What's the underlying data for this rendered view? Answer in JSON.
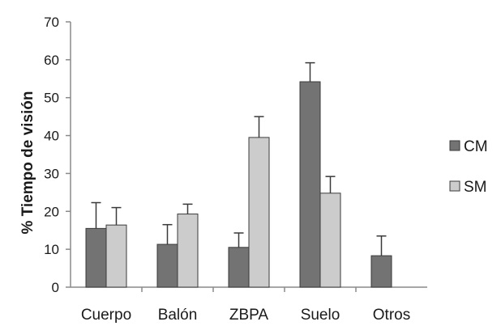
{
  "chart_data": {
    "type": "bar",
    "categories": [
      "Cuerpo",
      "Balón",
      "ZBPA",
      "Suelo",
      "Otros"
    ],
    "series": [
      {
        "name": "CM",
        "values": [
          15.5,
          11.3,
          10.5,
          54.2,
          8.3
        ],
        "errors": [
          6.8,
          5.2,
          3.8,
          5.0,
          5.2
        ],
        "color": "#737373"
      },
      {
        "name": "SM",
        "values": [
          16.4,
          19.3,
          39.5,
          24.8,
          0
        ],
        "errors": [
          4.6,
          2.6,
          5.5,
          4.4,
          0
        ],
        "color": "#cccccc"
      }
    ],
    "title": "",
    "xlabel": "",
    "ylabel": "% Tiempo de visión",
    "ylim": [
      0,
      70
    ],
    "yticks": [
      0,
      10,
      20,
      30,
      40,
      50,
      60,
      70
    ],
    "grid": false,
    "legend_position": "right"
  }
}
